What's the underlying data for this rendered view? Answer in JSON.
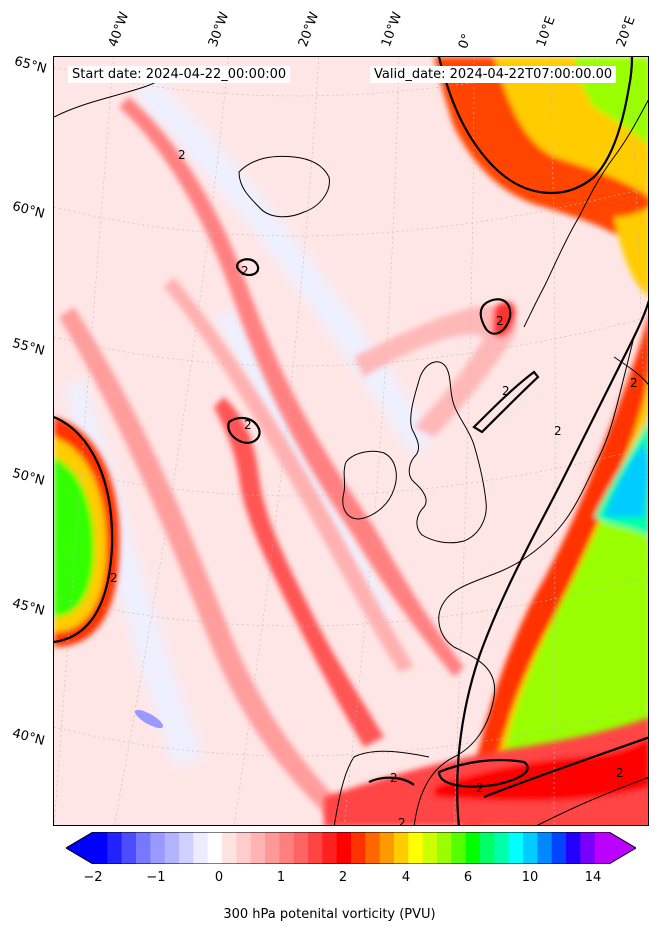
{
  "header": {
    "start_date": "Start date: 2024-04-22_00:00:00",
    "valid_date": "Valid_date: 2024-04-22T07:00:00.00"
  },
  "longitude_labels": [
    "40°W",
    "30°W",
    "20°W",
    "10°W",
    "0°",
    "10°E",
    "20°E"
  ],
  "latitude_labels": [
    "65°N",
    "60°N",
    "55°N",
    "50°N",
    "45°N",
    "40°N"
  ],
  "contour_label": "2",
  "colorbar": {
    "label": "300 hPa potenital vorticity (PVU)",
    "tick_labels": [
      "−2",
      "−1",
      "0",
      "1",
      "2",
      "4",
      "6",
      "10",
      "14"
    ],
    "colors": [
      "#0000ff",
      "#2222ff",
      "#4d4dff",
      "#7777ff",
      "#9999ff",
      "#b3b3ff",
      "#d0d0ff",
      "#ececff",
      "#ffffff",
      "#ffe3e3",
      "#ffcccc",
      "#ffb3b3",
      "#ff9999",
      "#ff7f7f",
      "#ff6464",
      "#ff4444",
      "#ff2020",
      "#ff0000",
      "#ff3300",
      "#ff6600",
      "#ff9900",
      "#ffcc00",
      "#ffff00",
      "#ccff00",
      "#99ff00",
      "#55ff00",
      "#00ff00",
      "#00ff66",
      "#00ffaa",
      "#00ffff",
      "#00ccff",
      "#0088ff",
      "#0044ff",
      "#2200ff",
      "#7700ff",
      "#bb00ff"
    ]
  },
  "colors": {
    "background_field": "#ffe6e6",
    "coastline": "#000000",
    "contour": "#000000"
  }
}
